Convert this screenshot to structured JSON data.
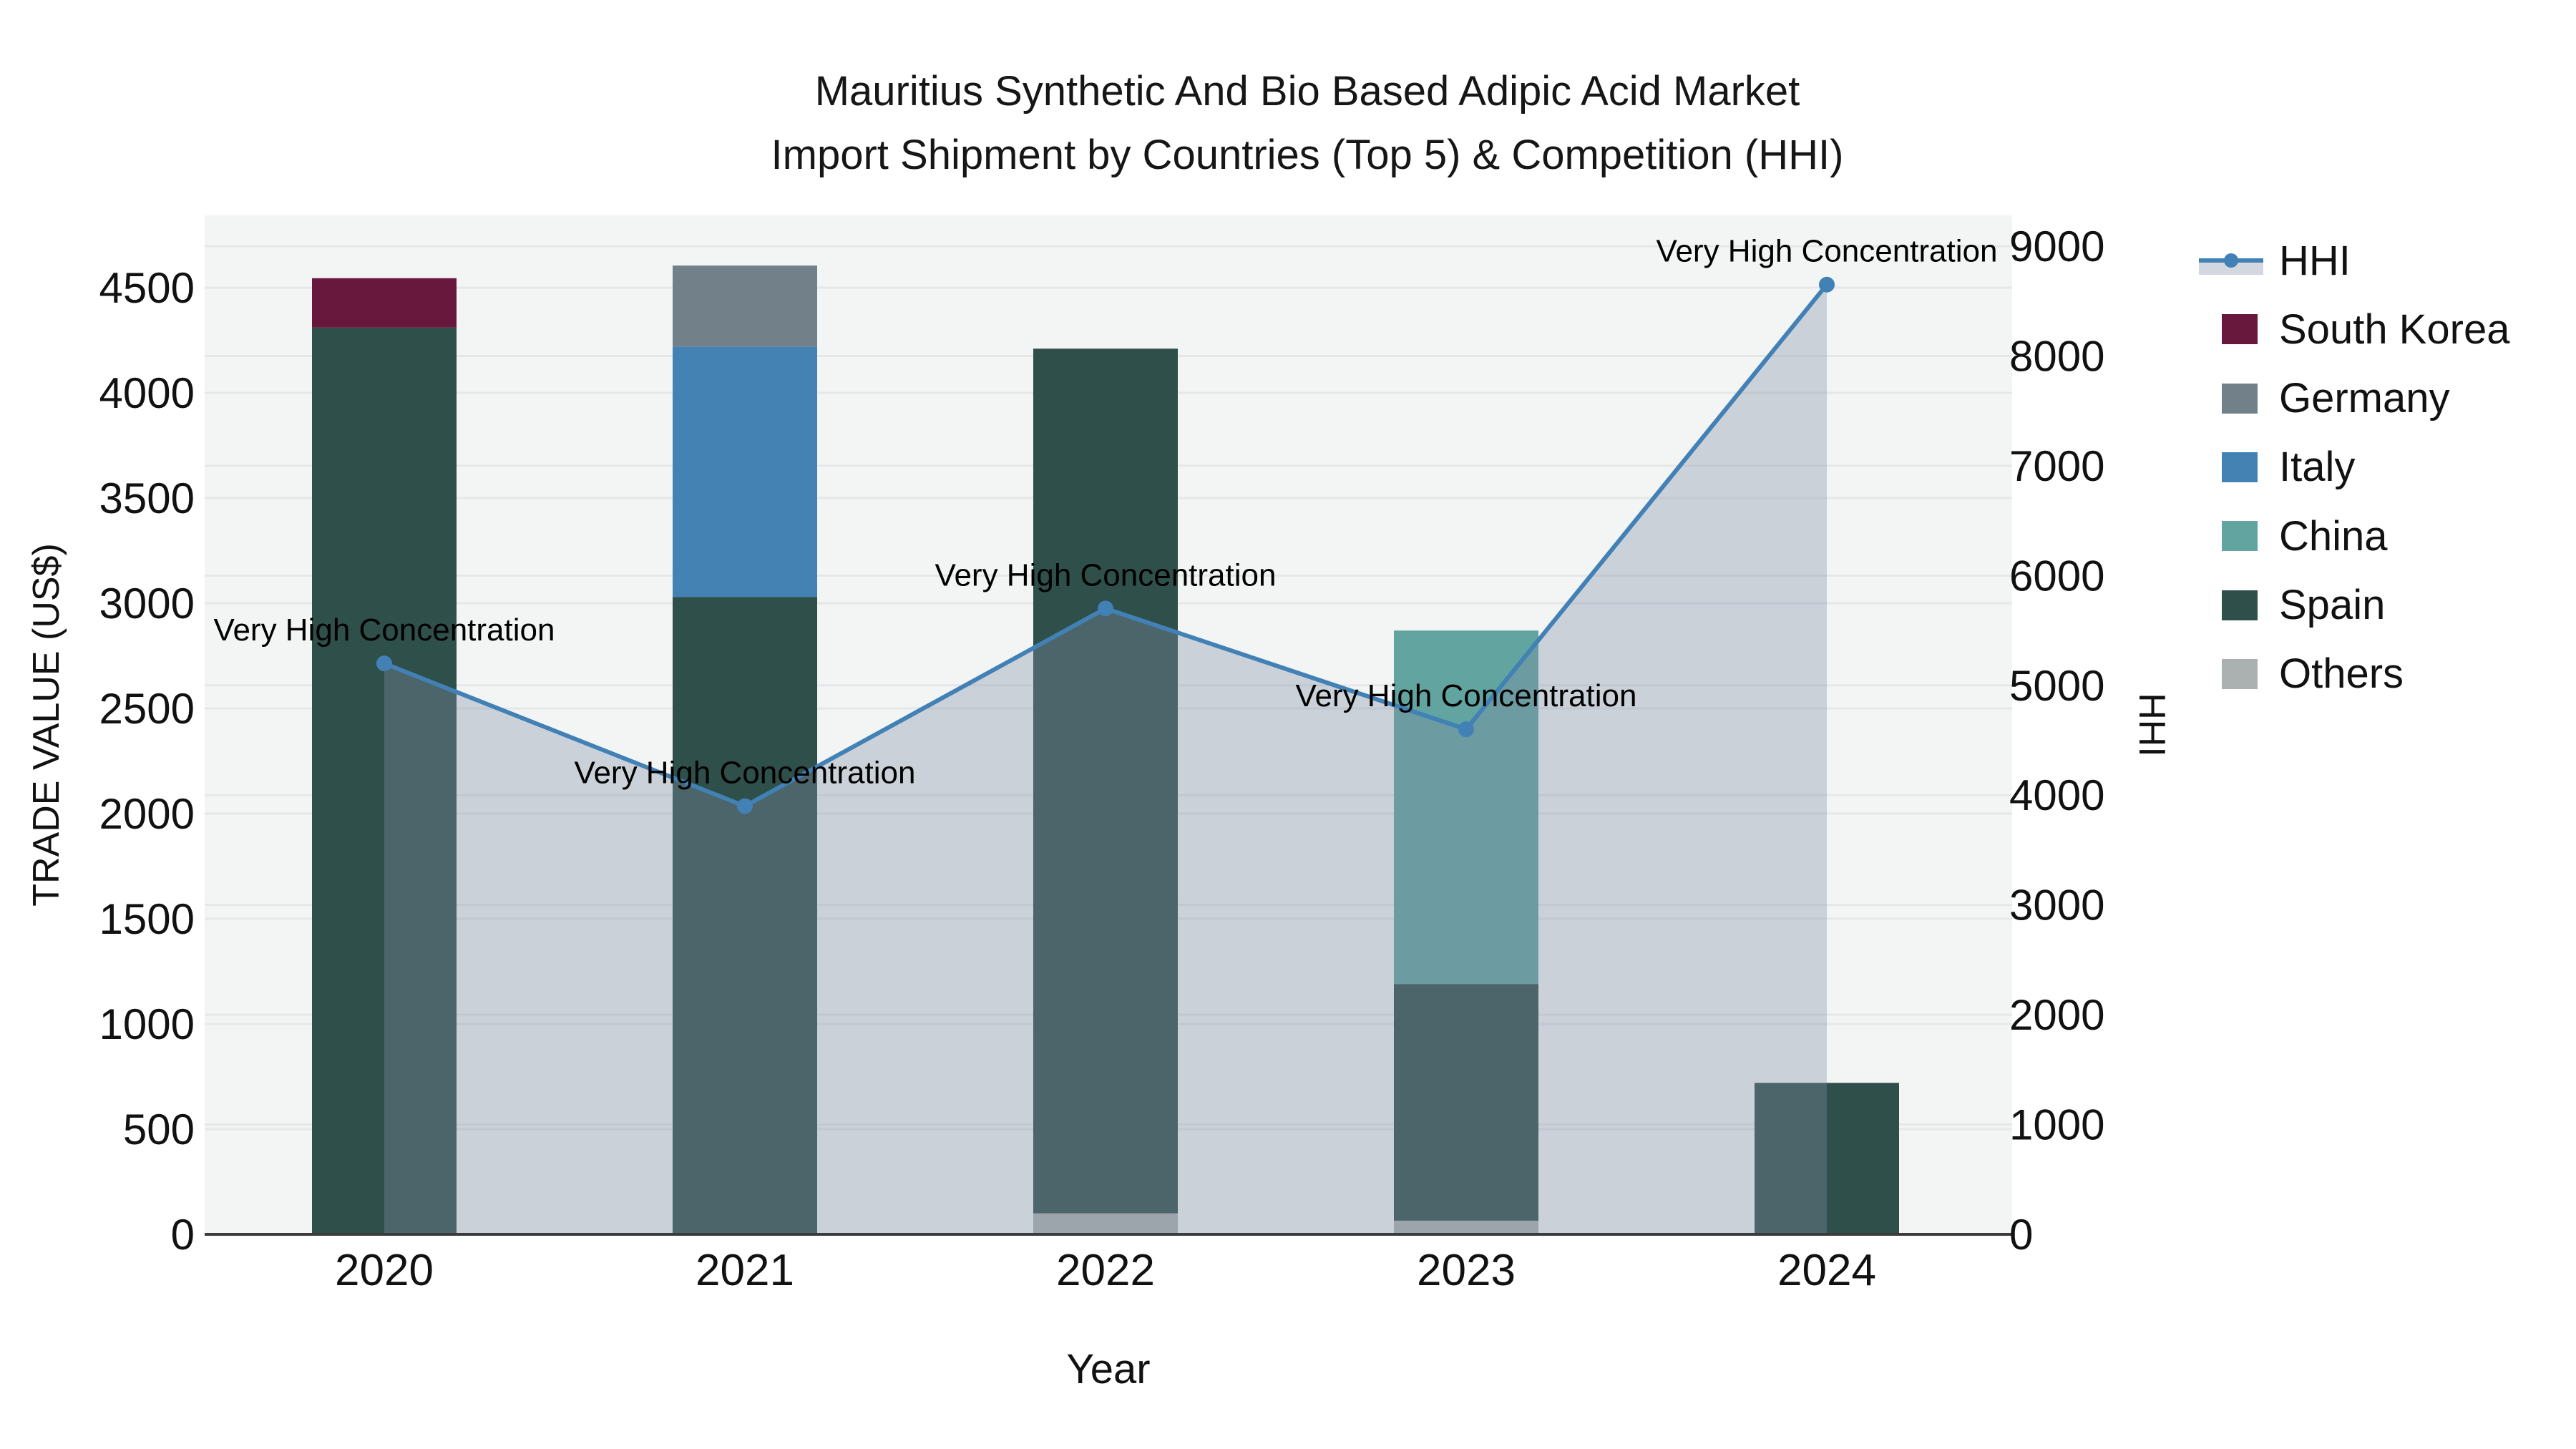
{
  "title": {
    "line1": "Mauritius Synthetic And Bio Based Adipic Acid Market",
    "line2": "Import Shipment by Countries (Top 5) & Competition (HHI)"
  },
  "axes": {
    "x": {
      "title": "Year",
      "categories": [
        "2020",
        "2021",
        "2022",
        "2023",
        "2024"
      ]
    },
    "y_left": {
      "title": "TRADE VALUE (US$)",
      "ticks": [
        0,
        500,
        1000,
        1500,
        2000,
        2500,
        3000,
        3500,
        4000,
        4500
      ]
    },
    "y_right": {
      "title": "HHI",
      "ticks": [
        0,
        1000,
        2000,
        3000,
        4000,
        5000,
        6000,
        7000,
        8000,
        9000
      ]
    }
  },
  "legend": {
    "items": [
      {
        "label": "HHI",
        "swatch": "line",
        "color": "#4181B5",
        "fill": "rgba(130,142,165,0.35)"
      },
      {
        "label": "South Korea",
        "swatch": "square",
        "color": "#68183D"
      },
      {
        "label": "Germany",
        "swatch": "square",
        "color": "#728089"
      },
      {
        "label": "Italy",
        "swatch": "square",
        "color": "#4482B4"
      },
      {
        "label": "China",
        "swatch": "square",
        "color": "#61A4A0"
      },
      {
        "label": "Spain",
        "swatch": "square",
        "color": "#2F4F4A"
      },
      {
        "label": "Others",
        "swatch": "square",
        "color": "#ABB0B0"
      }
    ]
  },
  "chart_data": {
    "type": "bar",
    "stacked": true,
    "title": "Mauritius Synthetic And Bio Based Adipic Acid Market Import Shipment by Countries (Top 5) & Competition (HHI)",
    "xlabel": "Year",
    "ylabel_left": "TRADE VALUE (US$)",
    "ylabel_right": "HHI",
    "ylim_left": [
      0,
      4845
    ],
    "ylim_right": [
      0,
      9280
    ],
    "grid": true,
    "legend_position": "right",
    "categories": [
      "2020",
      "2021",
      "2022",
      "2023",
      "2024"
    ],
    "series": [
      {
        "name": "Others",
        "color": "#ABB0B0",
        "values": [
          0,
          0,
          100,
          65,
          0
        ]
      },
      {
        "name": "Spain",
        "color": "#2F4F4A",
        "values": [
          4310,
          3030,
          4110,
          1125,
          720
        ]
      },
      {
        "name": "China",
        "color": "#61A4A0",
        "values": [
          0,
          0,
          0,
          1680,
          0
        ]
      },
      {
        "name": "Italy",
        "color": "#4482B4",
        "values": [
          0,
          1190,
          0,
          0,
          0
        ]
      },
      {
        "name": "Germany",
        "color": "#728089",
        "values": [
          0,
          385,
          0,
          0,
          0
        ]
      },
      {
        "name": "South Korea",
        "color": "#68183D",
        "values": [
          235,
          0,
          0,
          0,
          0
        ]
      }
    ],
    "line_series": {
      "name": "HHI",
      "axis": "right",
      "color": "#4181B5",
      "area_fill": "rgba(130,142,165,0.35)",
      "values": [
        5200,
        3900,
        5700,
        4600,
        8650
      ],
      "annotations": [
        "Very High Concentration",
        "Very High Concentration",
        "Very High Concentration",
        "Very High Concentration",
        "Very High Concentration"
      ]
    }
  }
}
